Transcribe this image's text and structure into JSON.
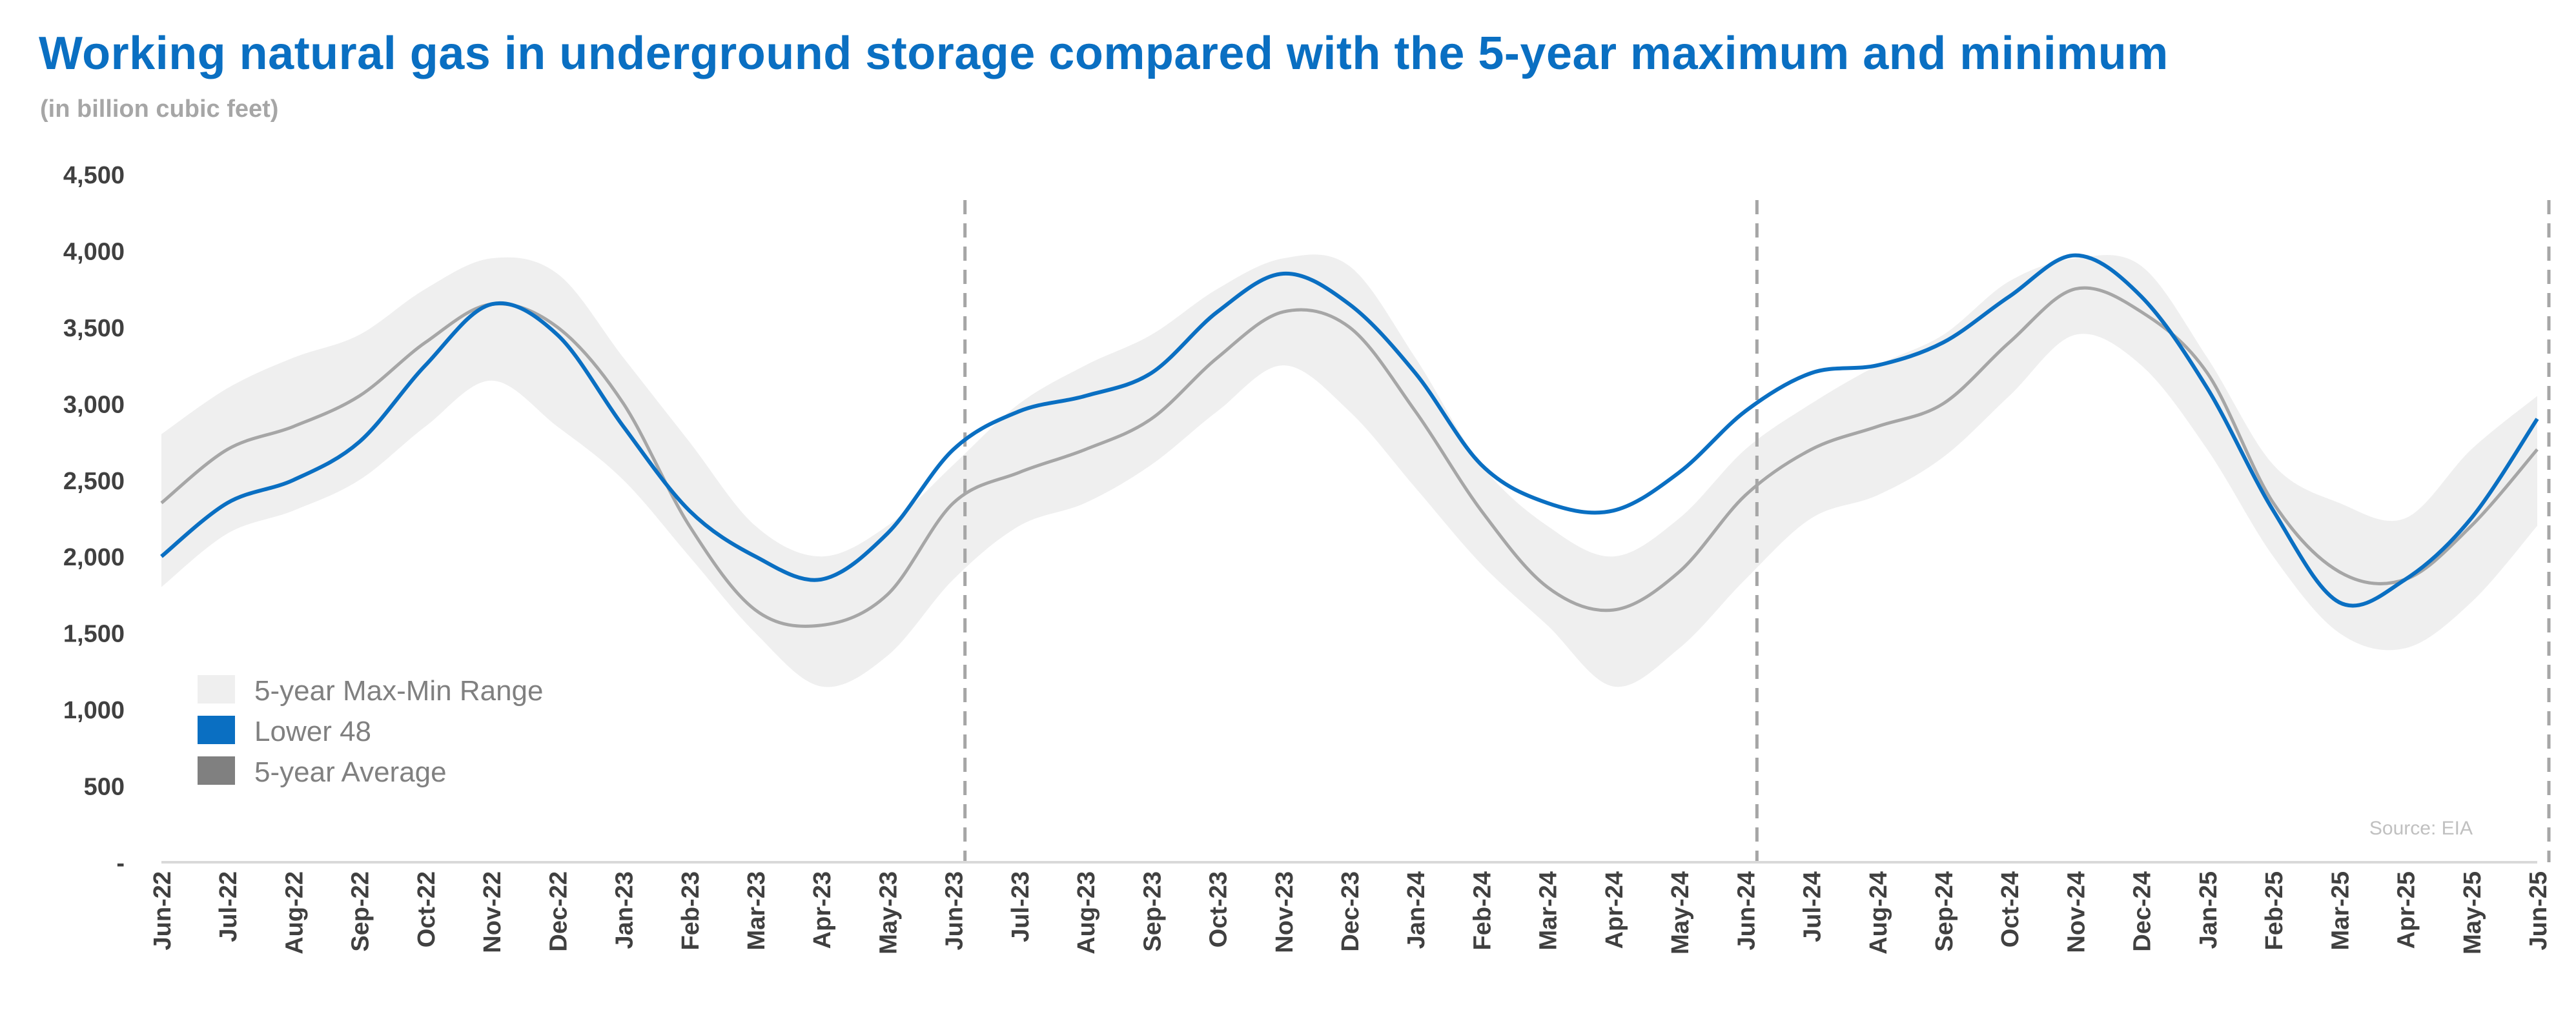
{
  "title": "Working natural gas in underground storage compared with the  5-year maximum and minimum",
  "subtitle": "(in billion cubic feet)",
  "source": "Source: EIA",
  "legend": [
    {
      "label": "5-year Max-Min Range",
      "color": "#efefef"
    },
    {
      "label": "Lower 48",
      "color": "#0a6fc2"
    },
    {
      "label": "5-year Average",
      "color": "#808080"
    }
  ],
  "colors": {
    "lower48": "#0a6fc2",
    "average": "#a6a6a6",
    "range": "#efefef",
    "axis": "#d9d9d9",
    "divider": "#a6a6a6"
  },
  "chart_data": {
    "type": "area",
    "title": "Working natural gas in underground storage compared with the  5-year maximum and minimum",
    "ylabel": "(in billion cubic feet)",
    "ylim": [
      0,
      4500
    ],
    "yticks": [
      0,
      500,
      1000,
      1500,
      2000,
      2500,
      3000,
      3500,
      4000,
      4500
    ],
    "ytick_labels": [
      "-",
      "500",
      "1,000",
      "1,500",
      "2,000",
      "2,500",
      "3,000",
      "3,500",
      "4,000",
      "4,500"
    ],
    "x_labels": [
      "Jun-22",
      "Jul-22",
      "Aug-22",
      "Sep-22",
      "Oct-22",
      "Nov-22",
      "Dec-22",
      "Jan-23",
      "Feb-23",
      "Mar-23",
      "Apr-23",
      "May-23",
      "Jun-23",
      "Jul-23",
      "Aug-23",
      "Sep-23",
      "Oct-23",
      "Nov-23",
      "Dec-23",
      "Jan-24",
      "Feb-24",
      "Mar-24",
      "Apr-24",
      "May-24",
      "Jun-24",
      "Jul-24",
      "Aug-24",
      "Sep-24",
      "Oct-24",
      "Nov-24",
      "Dec-24",
      "Jan-25",
      "Feb-25",
      "Mar-25",
      "Apr-25",
      "May-25",
      "Jun-25"
    ],
    "x_range": [
      "Jun-22",
      "Jun-25"
    ],
    "vertical_dividers": [
      "Jun-23",
      "Jun-24",
      "Jun-25"
    ],
    "grid": false,
    "legend_position": "bottom-left",
    "series": [
      {
        "name": "5-year Max-Min Range",
        "x": [
          "Jun-22",
          "Jul-22",
          "Aug-22",
          "Sep-22",
          "Oct-22",
          "Nov-22",
          "Dec-22",
          "Jan-23",
          "Feb-23",
          "Mar-23",
          "Apr-23",
          "May-23",
          "Jun-23",
          "Jul-23",
          "Aug-23",
          "Sep-23",
          "Oct-23",
          "Nov-23",
          "Dec-23",
          "Jan-24",
          "Feb-24",
          "Mar-24",
          "Apr-24",
          "May-24",
          "Jun-24",
          "Jul-24",
          "Aug-24",
          "Sep-24",
          "Oct-24",
          "Nov-24",
          "Dec-24",
          "Jan-25",
          "Feb-25",
          "Mar-25",
          "Apr-25",
          "May-25",
          "Jun-25"
        ],
        "max": [
          2800,
          3100,
          3300,
          3450,
          3750,
          3950,
          3850,
          3300,
          2750,
          2200,
          2000,
          2200,
          2600,
          3000,
          3250,
          3450,
          3750,
          3950,
          3900,
          3300,
          2600,
          2200,
          2000,
          2250,
          2700,
          3000,
          3250,
          3450,
          3800,
          3950,
          3900,
          3300,
          2600,
          2350,
          2250,
          2700,
          3050
        ],
        "min": [
          1800,
          2150,
          2300,
          2500,
          2850,
          3150,
          2850,
          2500,
          2000,
          1500,
          1150,
          1350,
          1850,
          2200,
          2350,
          2600,
          2950,
          3250,
          2950,
          2450,
          1950,
          1550,
          1150,
          1400,
          1850,
          2250,
          2400,
          2650,
          3050,
          3450,
          3250,
          2700,
          2000,
          1500,
          1400,
          1700,
          2200
        ]
      },
      {
        "name": "Lower 48",
        "x": [
          "Jun-22",
          "Jul-22",
          "Aug-22",
          "Sep-22",
          "Oct-22",
          "Nov-22",
          "Dec-22",
          "Jan-23",
          "Feb-23",
          "Mar-23",
          "Apr-23",
          "May-23",
          "Jun-23",
          "Jul-23",
          "Aug-23",
          "Sep-23",
          "Oct-23",
          "Nov-23",
          "Dec-23",
          "Jan-24",
          "Feb-24",
          "Mar-24",
          "Apr-24",
          "May-24",
          "Jun-24",
          "Jul-24",
          "Aug-24",
          "Sep-24",
          "Oct-24",
          "Nov-24",
          "Dec-24",
          "Jan-25",
          "Feb-25",
          "Mar-25",
          "Apr-25",
          "May-25",
          "Jun-25"
        ],
        "values": [
          2000,
          2350,
          2500,
          2750,
          3250,
          3650,
          3450,
          2850,
          2300,
          2000,
          1850,
          2150,
          2700,
          2950,
          3050,
          3200,
          3600,
          3850,
          3650,
          3200,
          2600,
          2350,
          2300,
          2550,
          2950,
          3200,
          3250,
          3400,
          3700,
          3970,
          3700,
          3100,
          2300,
          1700,
          1850,
          2250,
          2900
        ]
      },
      {
        "name": "5-year Average",
        "x": [
          "Jun-22",
          "Jul-22",
          "Aug-22",
          "Sep-22",
          "Oct-22",
          "Nov-22",
          "Dec-22",
          "Jan-23",
          "Feb-23",
          "Mar-23",
          "Apr-23",
          "May-23",
          "Jun-23",
          "Jul-23",
          "Aug-23",
          "Sep-23",
          "Oct-23",
          "Nov-23",
          "Dec-23",
          "Jan-24",
          "Feb-24",
          "Mar-24",
          "Apr-24",
          "May-24",
          "Jun-24",
          "Jul-24",
          "Aug-24",
          "Sep-24",
          "Oct-24",
          "Nov-24",
          "Dec-24",
          "Jan-25",
          "Feb-25",
          "Mar-25",
          "Apr-25",
          "May-25",
          "Jun-25"
        ],
        "values": [
          2350,
          2700,
          2850,
          3050,
          3400,
          3650,
          3500,
          3000,
          2200,
          1650,
          1550,
          1750,
          2350,
          2550,
          2700,
          2900,
          3300,
          3600,
          3500,
          2950,
          2300,
          1800,
          1650,
          1900,
          2400,
          2700,
          2850,
          3000,
          3400,
          3750,
          3600,
          3200,
          2350,
          1900,
          1850,
          2200,
          2700
        ]
      }
    ]
  }
}
